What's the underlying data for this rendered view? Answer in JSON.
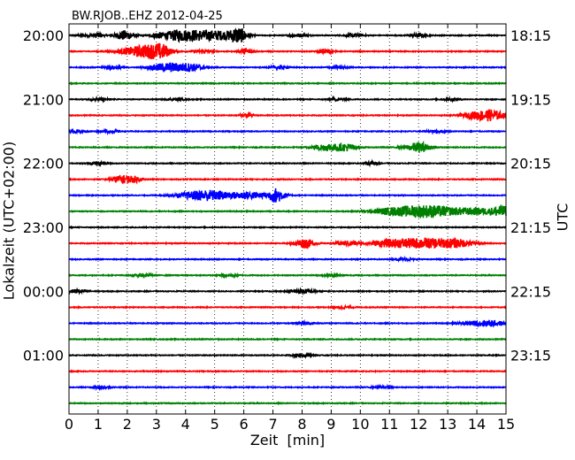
{
  "chart_data": {
    "type": "line",
    "title": "BW.RJOB..EHZ 2012-04-25",
    "xlabel": "Zeit  [min]",
    "ylabel_left": "Lokalzeit (UTC+02:00)",
    "ylabel_right": "UTC",
    "xlim": [
      0,
      15
    ],
    "x_ticks": [
      "0",
      "1",
      "2",
      "3",
      "4",
      "5",
      "6",
      "7",
      "8",
      "9",
      "10",
      "11",
      "12",
      "13",
      "14",
      "15"
    ],
    "grid": "vertical dotted lines at each minute",
    "left_tick_labels": [
      "20:00",
      "21:00",
      "22:00",
      "23:00",
      "00:00",
      "01:00"
    ],
    "right_tick_labels": [
      "18:15",
      "19:15",
      "20:15",
      "21:15",
      "22:15",
      "23:15"
    ],
    "trace_colors": [
      "#000000",
      "#ff0000",
      "#0000ff",
      "#008000"
    ],
    "traces": [
      {
        "row": 0,
        "bursts": [
          [
            0.5,
            0.15,
            0.25
          ],
          [
            1.0,
            0.3,
            0.2
          ],
          [
            1.9,
            0.6,
            0.3
          ],
          [
            3.0,
            0.3,
            0.2
          ],
          [
            3.7,
            0.6,
            0.5
          ],
          [
            4.5,
            0.6,
            0.6
          ],
          [
            5.2,
            0.4,
            0.4
          ],
          [
            5.8,
            1.0,
            0.3
          ],
          [
            7.9,
            0.2,
            0.3
          ],
          [
            9.8,
            0.2,
            0.3
          ],
          [
            12.0,
            0.2,
            0.3
          ]
        ]
      },
      {
        "row": 1,
        "bursts": [
          [
            2.3,
            0.5,
            0.6
          ],
          [
            2.9,
            0.6,
            0.5
          ],
          [
            3.2,
            0.5,
            0.3
          ],
          [
            6.1,
            0.4,
            0.2
          ],
          [
            8.8,
            0.35,
            0.2
          ],
          [
            4.6,
            0.2,
            0.3
          ]
        ]
      },
      {
        "row": 2,
        "bursts": [
          [
            3.2,
            0.35,
            0.5
          ],
          [
            3.8,
            0.4,
            0.6
          ],
          [
            4.3,
            0.25,
            0.4
          ],
          [
            1.5,
            0.2,
            0.3
          ],
          [
            7.2,
            0.15,
            0.3
          ],
          [
            9.2,
            0.15,
            0.3
          ]
        ]
      },
      {
        "row": 3,
        "bursts": []
      },
      {
        "row": 4,
        "bursts": [
          [
            1.0,
            0.15,
            0.3
          ],
          [
            3.7,
            0.15,
            0.3
          ],
          [
            9.2,
            0.15,
            0.3
          ],
          [
            13.1,
            0.15,
            0.3
          ]
        ]
      },
      {
        "row": 5,
        "bursts": [
          [
            6.1,
            0.25,
            0.2
          ],
          [
            14.0,
            0.45,
            0.5
          ],
          [
            14.55,
            0.55,
            0.4
          ]
        ]
      },
      {
        "row": 6,
        "bursts": [
          [
            0.3,
            0.2,
            0.3
          ],
          [
            1.4,
            0.15,
            0.3
          ],
          [
            12.6,
            0.15,
            0.3
          ]
        ]
      },
      {
        "row": 7,
        "bursts": [
          [
            8.7,
            0.35,
            0.4
          ],
          [
            9.1,
            0.25,
            0.3
          ],
          [
            9.55,
            0.45,
            0.3
          ],
          [
            11.9,
            0.4,
            0.4
          ],
          [
            12.1,
            0.3,
            0.3
          ]
        ]
      },
      {
        "row": 8,
        "bursts": [
          [
            10.4,
            0.2,
            0.2
          ],
          [
            1.0,
            0.15,
            0.3
          ]
        ]
      },
      {
        "row": 9,
        "bursts": [
          [
            1.7,
            0.35,
            0.3
          ],
          [
            2.0,
            0.3,
            0.3
          ],
          [
            2.3,
            0.25,
            0.2
          ]
        ]
      },
      {
        "row": 10,
        "bursts": [
          [
            4.4,
            0.45,
            0.7
          ],
          [
            5.0,
            0.4,
            0.6
          ],
          [
            5.9,
            0.35,
            0.4
          ],
          [
            6.4,
            0.3,
            0.3
          ],
          [
            7.1,
            0.9,
            0.3
          ]
        ]
      },
      {
        "row": 11,
        "bursts": [
          [
            11.0,
            0.4,
            0.7
          ],
          [
            11.8,
            0.4,
            0.6
          ],
          [
            12.3,
            0.45,
            0.6
          ],
          [
            12.8,
            0.35,
            0.5
          ],
          [
            13.5,
            0.35,
            0.5
          ],
          [
            14.2,
            0.35,
            0.5
          ],
          [
            14.85,
            0.7,
            0.3
          ]
        ]
      },
      {
        "row": 12,
        "bursts": []
      },
      {
        "row": 13,
        "bursts": [
          [
            8.1,
            0.6,
            0.3
          ],
          [
            9.6,
            0.3,
            0.4
          ],
          [
            10.8,
            0.35,
            0.5
          ],
          [
            11.5,
            0.3,
            0.6
          ],
          [
            12.1,
            0.35,
            0.8
          ],
          [
            12.8,
            0.35,
            0.8
          ],
          [
            13.4,
            0.3,
            0.5
          ]
        ]
      },
      {
        "row": 14,
        "bursts": [
          [
            11.5,
            0.15,
            0.3
          ]
        ]
      },
      {
        "row": 15,
        "bursts": [
          [
            2.5,
            0.15,
            0.3
          ],
          [
            5.5,
            0.15,
            0.3
          ],
          [
            9.0,
            0.15,
            0.3
          ]
        ]
      },
      {
        "row": 16,
        "bursts": [
          [
            0.3,
            0.25,
            0.3
          ],
          [
            7.8,
            0.2,
            0.3
          ],
          [
            8.2,
            0.2,
            0.3
          ]
        ]
      },
      {
        "row": 17,
        "bursts": [
          [
            9.4,
            0.15,
            0.3
          ]
        ]
      },
      {
        "row": 18,
        "bursts": [
          [
            14.1,
            0.3,
            0.6
          ],
          [
            14.6,
            0.2,
            0.4
          ],
          [
            8.1,
            0.15,
            0.3
          ]
        ]
      },
      {
        "row": 19,
        "bursts": []
      },
      {
        "row": 20,
        "bursts": [
          [
            8.0,
            0.2,
            0.3
          ]
        ]
      },
      {
        "row": 21,
        "bursts": []
      },
      {
        "row": 22,
        "bursts": [
          [
            10.7,
            0.15,
            0.3
          ],
          [
            1.1,
            0.15,
            0.3
          ]
        ]
      },
      {
        "row": 23,
        "bursts": []
      }
    ]
  }
}
